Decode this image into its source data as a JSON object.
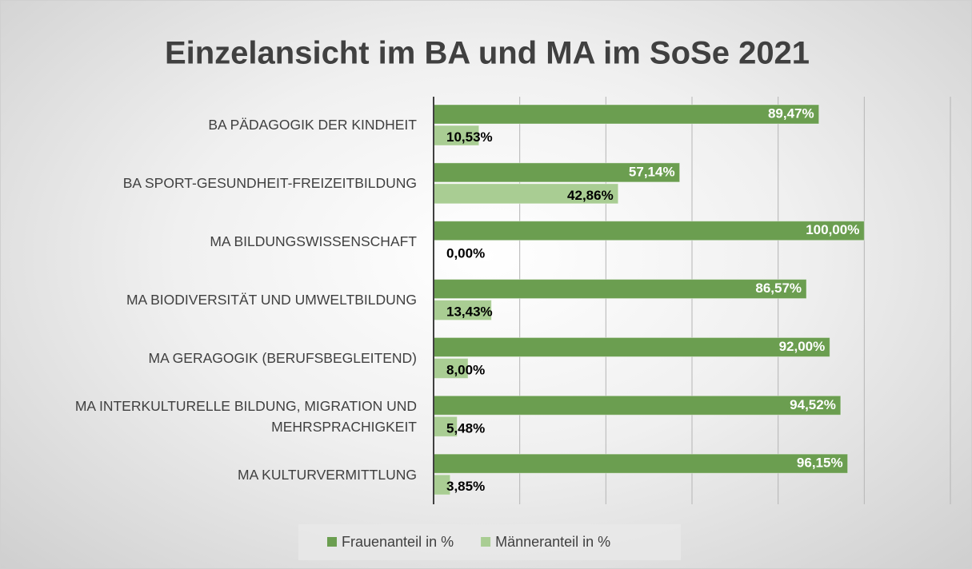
{
  "chart_data": {
    "type": "bar",
    "orientation": "horizontal",
    "title": "Einzelansicht im BA und MA im SoSe 2021",
    "categories": [
      "BA PÄDAGOGIK DER KINDHEIT",
      "BA SPORT-GESUNDHEIT-FREIZEITBILDUNG",
      "MA BILDUNGSWISSENSCHAFT",
      "MA BIODIVERSITÄT UND UMWELTBILDUNG",
      "MA GERAGOGIK (BERUFSBEGLEITEND)",
      "MA INTERKULTURELLE BILDUNG, MIGRATION UND MEHRSPRACHIGKEIT",
      "MA KULTURVERMITTLUNG"
    ],
    "series": [
      {
        "name": "Frauenanteil in %",
        "color": "#6b9e50",
        "values": [
          89.47,
          57.14,
          100.0,
          86.57,
          92.0,
          94.52,
          96.15
        ],
        "value_labels": [
          "89,47%",
          "57,14%",
          "100,00%",
          "86,57%",
          "92,00%",
          "94,52%",
          "96,15%"
        ]
      },
      {
        "name": "Männeranteil in %",
        "color": "#a9cd93",
        "values": [
          10.53,
          42.86,
          0.0,
          13.43,
          8.0,
          5.48,
          3.85
        ],
        "value_labels": [
          "10,53%",
          "42,86%",
          "0,00%",
          "13,43%",
          "8,00%",
          "5,48%",
          "3,85%"
        ]
      }
    ],
    "xlim": [
      0,
      120
    ],
    "xticks": [
      0,
      20,
      40,
      60,
      80,
      100,
      120
    ],
    "grid": true,
    "legend": "bottom"
  }
}
